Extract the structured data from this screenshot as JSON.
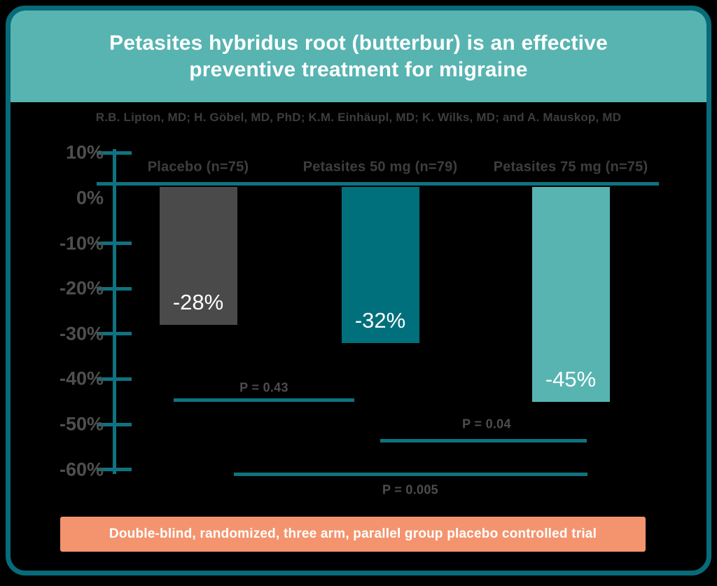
{
  "header": {
    "title_line1": "Petasites hybridus root (butterbur) is an effective",
    "title_line2": "preventive treatment for migraine"
  },
  "authors": "R.B. Lipton, MD; H. Göbel, MD, PhD; K.M. Einhäupl, MD; K. Wilks, MD; and A. Mauskop, MD",
  "footer": {
    "label": "Double-blind, randomized, three arm, parallel group placebo controlled trial"
  },
  "colors": {
    "header_teal": "#57b4b1",
    "border_teal": "#086b79",
    "line_teal": "#0e7380",
    "bar_gray": "#4a4a4a",
    "bar_dark_teal": "#00707c",
    "bar_light_teal": "#57b4b1",
    "footer_salmon": "#f4946e",
    "text_dark": "#3e3e3e",
    "text_axis": "#4f4f4f",
    "text_white": "#ffffff",
    "background": "#000000"
  },
  "chart_data": {
    "type": "bar",
    "title": "Petasites hybridus root (butterbur) is an effective preventive treatment for migraine",
    "categories": [
      "Placebo (n=75)",
      "Petasites 50 mg (n=79)",
      "Petasites 75 mg (n=75)"
    ],
    "values": [
      -28,
      -32,
      -45
    ],
    "value_labels": [
      "-28%",
      "-32%",
      "-45%"
    ],
    "bar_colors": [
      "#4a4a4a",
      "#00707c",
      "#57b4b1"
    ],
    "xlabel": "",
    "ylabel": "",
    "ylim": [
      -60,
      10
    ],
    "yticks": [
      "10%",
      "0%",
      "-10%",
      "-20%",
      "-30%",
      "-40%",
      "-50%",
      "-60%"
    ],
    "grid": false,
    "legend": "none",
    "annotations": [
      {
        "label": "P = 0.43",
        "compares": [
          "Placebo (n=75)",
          "Petasites 50 mg (n=79)"
        ]
      },
      {
        "label": "P = 0.04",
        "compares": [
          "Petasites 50 mg (n=79)",
          "Petasites 75 mg (n=75)"
        ]
      },
      {
        "label": "P = 0.005",
        "compares": [
          "Placebo (n=75)",
          "Petasites 75 mg (n=75)"
        ]
      }
    ]
  }
}
